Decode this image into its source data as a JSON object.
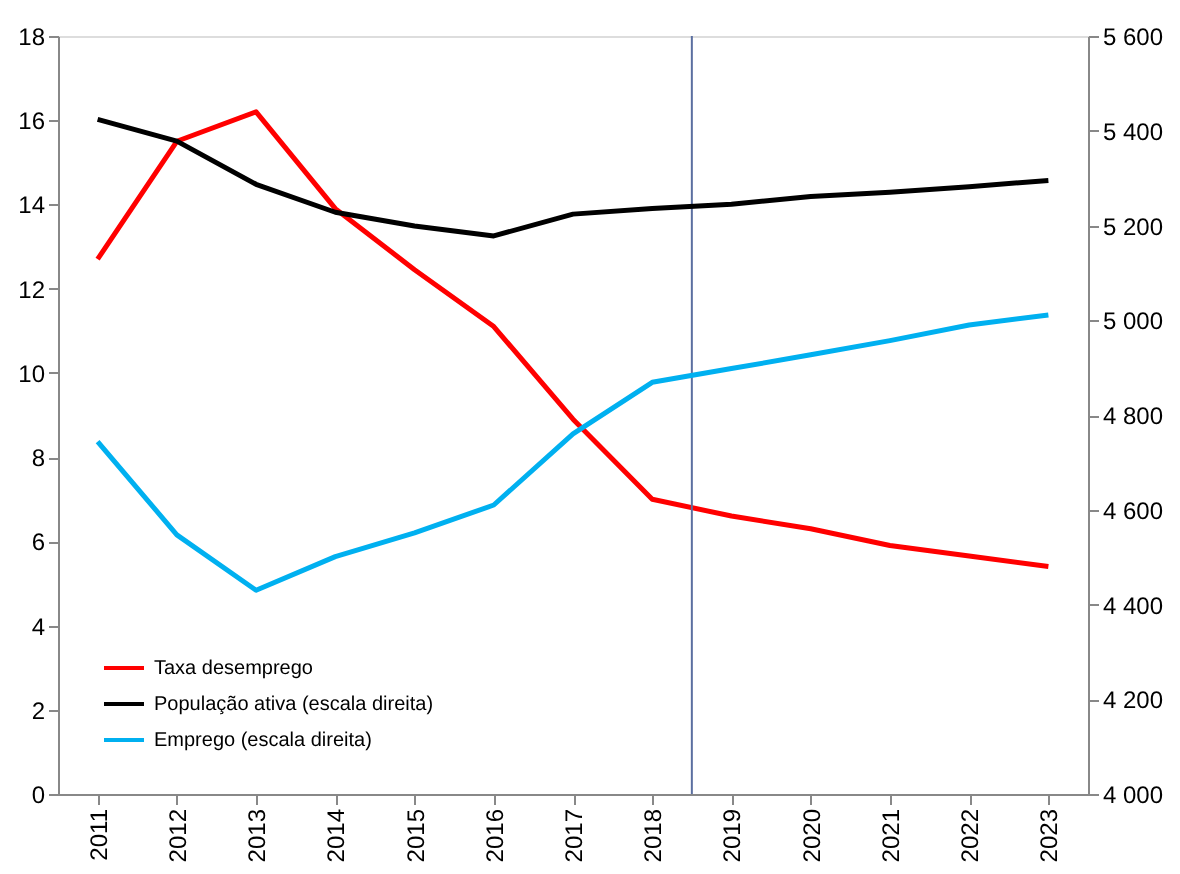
{
  "chart_data": {
    "type": "line",
    "x": [
      2011,
      2012,
      2013,
      2014,
      2015,
      2016,
      2017,
      2018,
      2019,
      2020,
      2021,
      2022,
      2023
    ],
    "xlim": [
      2010.5,
      2023.5
    ],
    "xticks": [
      2011,
      2012,
      2013,
      2014,
      2015,
      2016,
      2017,
      2018,
      2019,
      2020,
      2021,
      2022,
      2023
    ],
    "ylim": [
      0,
      18
    ],
    "yticks": [
      0,
      2,
      4,
      6,
      8,
      10,
      12,
      14,
      16,
      18
    ],
    "y2lim": [
      4000,
      5600
    ],
    "y2ticks": [
      {
        "value": 4000,
        "label": "4 000"
      },
      {
        "value": 4200,
        "label": "4 200"
      },
      {
        "value": 4400,
        "label": "4 400"
      },
      {
        "value": 4600,
        "label": "4 600"
      },
      {
        "value": 4800,
        "label": "4 800"
      },
      {
        "value": 5000,
        "label": "5 000"
      },
      {
        "value": 5200,
        "label": "5 200"
      },
      {
        "value": 5400,
        "label": "5 400"
      },
      {
        "value": 5600,
        "label": "5 600"
      }
    ],
    "series": [
      {
        "name": "Taxa desemprego",
        "color": "#ff0000",
        "values": [
          12.7,
          15.5,
          16.2,
          13.9,
          12.45,
          11.1,
          8.9,
          7.0,
          6.6,
          6.3,
          5.9,
          5.65,
          5.4
        ]
      },
      {
        "name": "População ativa (escala direita)",
        "color": "#000000",
        "axis": "y2",
        "values": [
          5424,
          5378,
          5287,
          5228,
          5199,
          5178,
          5224,
          5236,
          5245,
          5261,
          5270,
          5282,
          5295
        ]
      },
      {
        "name": "Emprego (escala direita)",
        "color": "#00b0f0",
        "axis": "y2",
        "values": [
          4744,
          4547,
          4430,
          4501,
          4551,
          4610,
          4760,
          4869,
          4898,
          4927,
          4957,
          4990,
          5011
        ]
      }
    ],
    "ref_lines": [
      {
        "axis": "x",
        "value": 2018.5,
        "color": "#5b6fa0"
      }
    ],
    "legend": "bottom left",
    "grid": false,
    "marker": "none",
    "line_style": "solid"
  }
}
